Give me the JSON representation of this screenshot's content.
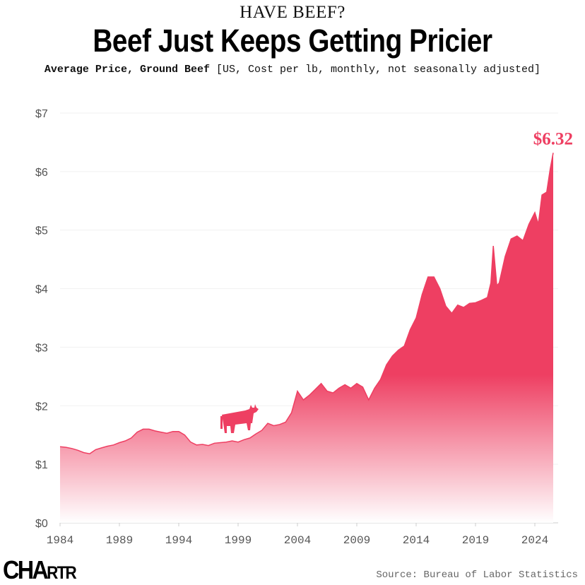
{
  "header": {
    "kicker": "HAVE BEEF?",
    "title": "Beef Just Keeps Getting Pricier",
    "subtitle_bold": "Average Price, Ground Beef",
    "subtitle_note": "[US, Cost per lb, monthly, not seasonally adjusted]"
  },
  "footer": {
    "logo": "CHARTR",
    "source": "Source: Bureau of Labor Statistics"
  },
  "colors": {
    "accent": "#ee3f62",
    "text": "#111111",
    "axis": "#555555"
  },
  "chart_data": {
    "type": "area",
    "title": "Beef Just Keeps Getting Pricier",
    "xlabel": "",
    "ylabel": "",
    "xlim": [
      1984,
      2025.6
    ],
    "ylim": [
      0,
      7
    ],
    "x_ticks": [
      "1984",
      "1989",
      "1994",
      "1999",
      "2004",
      "2009",
      "2014",
      "2019",
      "2024"
    ],
    "y_ticks": [
      "$0",
      "$1",
      "$2",
      "$3",
      "$4",
      "$5",
      "$6",
      "$7"
    ],
    "grid": "horizontal",
    "annotation": "$6.32",
    "icon": "cow-icon",
    "points": [
      [
        1984.0,
        1.3
      ],
      [
        1984.5,
        1.29
      ],
      [
        1985.0,
        1.27
      ],
      [
        1985.5,
        1.24
      ],
      [
        1986.0,
        1.2
      ],
      [
        1986.5,
        1.18
      ],
      [
        1987.0,
        1.25
      ],
      [
        1987.5,
        1.28
      ],
      [
        1988.0,
        1.31
      ],
      [
        1988.5,
        1.33
      ],
      [
        1989.0,
        1.37
      ],
      [
        1989.5,
        1.4
      ],
      [
        1990.0,
        1.45
      ],
      [
        1990.5,
        1.55
      ],
      [
        1991.0,
        1.6
      ],
      [
        1991.5,
        1.6
      ],
      [
        1992.0,
        1.57
      ],
      [
        1992.5,
        1.55
      ],
      [
        1993.0,
        1.53
      ],
      [
        1993.5,
        1.56
      ],
      [
        1994.0,
        1.56
      ],
      [
        1994.5,
        1.5
      ],
      [
        1995.0,
        1.38
      ],
      [
        1995.5,
        1.33
      ],
      [
        1996.0,
        1.34
      ],
      [
        1996.5,
        1.32
      ],
      [
        1997.0,
        1.36
      ],
      [
        1997.5,
        1.37
      ],
      [
        1998.0,
        1.38
      ],
      [
        1998.5,
        1.4
      ],
      [
        1999.0,
        1.38
      ],
      [
        1999.5,
        1.42
      ],
      [
        2000.0,
        1.45
      ],
      [
        2000.5,
        1.52
      ],
      [
        2001.0,
        1.58
      ],
      [
        2001.5,
        1.7
      ],
      [
        2002.0,
        1.66
      ],
      [
        2002.5,
        1.68
      ],
      [
        2003.0,
        1.72
      ],
      [
        2003.5,
        1.88
      ],
      [
        2004.0,
        2.25
      ],
      [
        2004.5,
        2.1
      ],
      [
        2005.0,
        2.18
      ],
      [
        2005.5,
        2.28
      ],
      [
        2006.0,
        2.38
      ],
      [
        2006.5,
        2.25
      ],
      [
        2007.0,
        2.22
      ],
      [
        2007.5,
        2.3
      ],
      [
        2008.0,
        2.36
      ],
      [
        2008.5,
        2.3
      ],
      [
        2009.0,
        2.38
      ],
      [
        2009.5,
        2.32
      ],
      [
        2010.0,
        2.1
      ],
      [
        2010.5,
        2.3
      ],
      [
        2011.0,
        2.45
      ],
      [
        2011.5,
        2.7
      ],
      [
        2012.0,
        2.85
      ],
      [
        2012.5,
        2.95
      ],
      [
        2013.0,
        3.02
      ],
      [
        2013.5,
        3.3
      ],
      [
        2014.0,
        3.5
      ],
      [
        2014.5,
        3.9
      ],
      [
        2015.0,
        4.2
      ],
      [
        2015.5,
        4.2
      ],
      [
        2016.0,
        4.0
      ],
      [
        2016.5,
        3.7
      ],
      [
        2017.0,
        3.58
      ],
      [
        2017.5,
        3.72
      ],
      [
        2018.0,
        3.68
      ],
      [
        2018.5,
        3.75
      ],
      [
        2019.0,
        3.76
      ],
      [
        2019.5,
        3.8
      ],
      [
        2020.0,
        3.85
      ],
      [
        2020.3,
        4.1
      ],
      [
        2020.5,
        4.73
      ],
      [
        2020.8,
        4.05
      ],
      [
        2021.0,
        4.1
      ],
      [
        2021.5,
        4.55
      ],
      [
        2022.0,
        4.85
      ],
      [
        2022.5,
        4.9
      ],
      [
        2023.0,
        4.82
      ],
      [
        2023.5,
        5.1
      ],
      [
        2024.0,
        5.3
      ],
      [
        2024.3,
        5.1
      ],
      [
        2024.6,
        5.6
      ],
      [
        2025.0,
        5.65
      ],
      [
        2025.3,
        6.05
      ],
      [
        2025.55,
        6.32
      ]
    ]
  }
}
